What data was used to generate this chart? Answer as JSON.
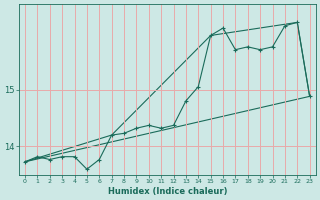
{
  "title": "",
  "xlabel": "Humidex (Indice chaleur)",
  "bg_color": "#cde8e5",
  "grid_color": "#e8aaaa",
  "line_color": "#1a6b5a",
  "yticks": [
    14,
    15
  ],
  "ylim": [
    13.5,
    16.5
  ],
  "xlim": [
    -0.5,
    23.5
  ],
  "xticks": [
    0,
    1,
    2,
    3,
    4,
    5,
    6,
    7,
    8,
    9,
    10,
    11,
    12,
    13,
    14,
    15,
    16,
    17,
    18,
    19,
    20,
    21,
    22,
    23
  ],
  "main_x": [
    0,
    1,
    2,
    3,
    4,
    5,
    6,
    7,
    8,
    9,
    10,
    11,
    12,
    13,
    14,
    15,
    16,
    17,
    18,
    19,
    20,
    21,
    22,
    23
  ],
  "main_y": [
    13.73,
    13.82,
    13.77,
    13.82,
    13.82,
    13.6,
    13.77,
    14.2,
    14.23,
    14.32,
    14.37,
    14.32,
    14.37,
    14.8,
    15.05,
    15.95,
    16.08,
    15.7,
    15.75,
    15.7,
    15.75,
    16.12,
    16.18,
    14.88
  ],
  "line2_x": [
    0,
    23
  ],
  "line2_y": [
    13.73,
    14.88
  ],
  "line3_x": [
    0,
    7,
    15,
    22,
    23
  ],
  "line3_y": [
    13.73,
    14.2,
    15.95,
    16.18,
    14.88
  ]
}
